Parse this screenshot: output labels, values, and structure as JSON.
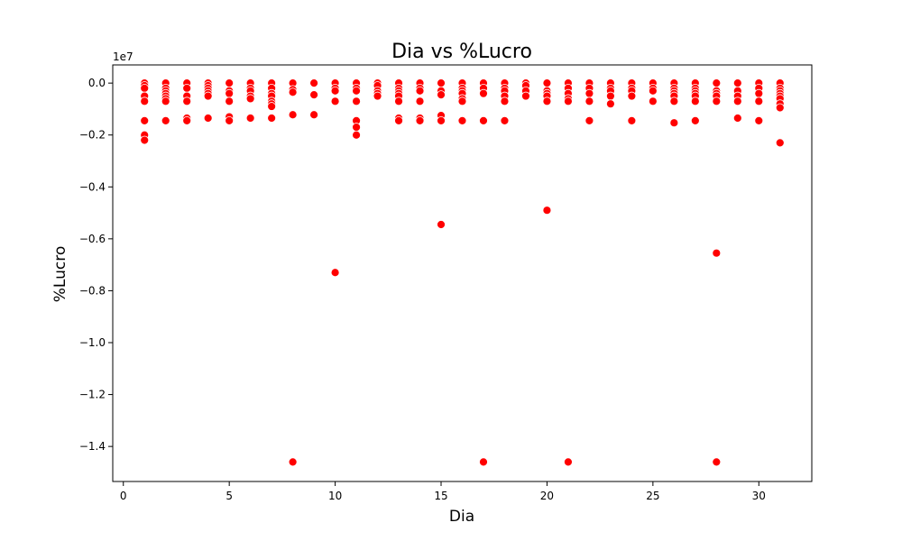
{
  "chart_data": {
    "type": "scatter",
    "title": "Dia vs %Lucro",
    "xlabel": "Dia",
    "ylabel": "%Lucro",
    "y_offset_label": "1e7",
    "xlim": [
      -0.5,
      32.5
    ],
    "ylim": [
      -1.535,
      0.07
    ],
    "x_ticks": [
      0,
      5,
      10,
      15,
      20,
      25,
      30
    ],
    "x_tick_labels": [
      "0",
      "5",
      "10",
      "15",
      "20",
      "25",
      "30"
    ],
    "y_ticks": [
      0.0,
      -0.2,
      -0.4,
      -0.6,
      -0.8,
      -1.0,
      -1.2,
      -1.4
    ],
    "y_tick_labels": [
      "0.0",
      "−0.2",
      "−0.4",
      "−0.6",
      "−0.8",
      "−1.0",
      "−1.2",
      "−1.4"
    ],
    "grid": false,
    "marker_color": "#ff0000",
    "series": [
      {
        "points": [
          [
            1,
            0.0
          ],
          [
            1,
            -0.01
          ],
          [
            1,
            -0.02
          ],
          [
            1,
            -0.05
          ],
          [
            1,
            -0.07
          ],
          [
            1,
            -0.2
          ],
          [
            1,
            -0.22
          ],
          [
            1,
            -0.145
          ],
          [
            2,
            0.0
          ],
          [
            2,
            -0.02
          ],
          [
            2,
            -0.03
          ],
          [
            2,
            -0.04
          ],
          [
            2,
            -0.05
          ],
          [
            2,
            -0.06
          ],
          [
            2,
            -0.07
          ],
          [
            2,
            -0.145
          ],
          [
            3,
            0.0
          ],
          [
            3,
            -0.02
          ],
          [
            3,
            -0.05
          ],
          [
            3,
            -0.07
          ],
          [
            3,
            -0.135
          ],
          [
            3,
            -0.145
          ],
          [
            4,
            0.0
          ],
          [
            4,
            -0.01
          ],
          [
            4,
            -0.02
          ],
          [
            4,
            -0.03
          ],
          [
            4,
            -0.04
          ],
          [
            4,
            -0.05
          ],
          [
            4,
            -0.135
          ],
          [
            5,
            0.0
          ],
          [
            5,
            -0.03
          ],
          [
            5,
            -0.04
          ],
          [
            5,
            -0.07
          ],
          [
            5,
            -0.13
          ],
          [
            5,
            -0.145
          ],
          [
            6,
            0.0
          ],
          [
            6,
            -0.02
          ],
          [
            6,
            -0.03
          ],
          [
            6,
            -0.05
          ],
          [
            6,
            -0.06
          ],
          [
            6,
            -0.135
          ],
          [
            7,
            0.0
          ],
          [
            7,
            -0.02
          ],
          [
            7,
            -0.04
          ],
          [
            7,
            -0.05
          ],
          [
            7,
            -0.07
          ],
          [
            7,
            -0.08
          ],
          [
            7,
            -0.09
          ],
          [
            7,
            -0.135
          ],
          [
            8,
            0.0
          ],
          [
            8,
            -0.025
          ],
          [
            8,
            -0.035
          ],
          [
            8,
            -0.122
          ],
          [
            8,
            -1.46
          ],
          [
            9,
            0.0
          ],
          [
            9,
            -0.045
          ],
          [
            9,
            -0.122
          ],
          [
            10,
            0.0
          ],
          [
            10,
            -0.02
          ],
          [
            10,
            -0.03
          ],
          [
            10,
            -0.07
          ],
          [
            10,
            -0.73
          ],
          [
            11,
            0.0
          ],
          [
            11,
            -0.02
          ],
          [
            11,
            -0.03
          ],
          [
            11,
            -0.07
          ],
          [
            11,
            -0.145
          ],
          [
            11,
            -0.17
          ],
          [
            11,
            -0.2
          ],
          [
            12,
            0.0
          ],
          [
            12,
            -0.01
          ],
          [
            12,
            -0.03
          ],
          [
            12,
            -0.04
          ],
          [
            12,
            -0.05
          ],
          [
            13,
            0.0
          ],
          [
            13,
            -0.02
          ],
          [
            13,
            -0.03
          ],
          [
            13,
            -0.04
          ],
          [
            13,
            -0.05
          ],
          [
            13,
            -0.07
          ],
          [
            13,
            -0.135
          ],
          [
            13,
            -0.145
          ],
          [
            14,
            0.0
          ],
          [
            14,
            -0.02
          ],
          [
            14,
            -0.03
          ],
          [
            14,
            -0.07
          ],
          [
            14,
            -0.135
          ],
          [
            14,
            -0.145
          ],
          [
            15,
            0.0
          ],
          [
            15,
            -0.03
          ],
          [
            15,
            -0.045
          ],
          [
            15,
            -0.125
          ],
          [
            15,
            -0.145
          ],
          [
            15,
            -0.545
          ],
          [
            16,
            0.0
          ],
          [
            16,
            -0.02
          ],
          [
            16,
            -0.03
          ],
          [
            16,
            -0.04
          ],
          [
            16,
            -0.06
          ],
          [
            16,
            -0.07
          ],
          [
            16,
            -0.145
          ],
          [
            17,
            0.0
          ],
          [
            17,
            -0.02
          ],
          [
            17,
            -0.04
          ],
          [
            17,
            -0.145
          ],
          [
            17,
            -1.46
          ],
          [
            18,
            0.0
          ],
          [
            18,
            -0.02
          ],
          [
            18,
            -0.03
          ],
          [
            18,
            -0.05
          ],
          [
            18,
            -0.07
          ],
          [
            18,
            -0.145
          ],
          [
            19,
            0.0
          ],
          [
            19,
            -0.01
          ],
          [
            19,
            -0.03
          ],
          [
            19,
            -0.05
          ],
          [
            20,
            0.0
          ],
          [
            20,
            -0.03
          ],
          [
            20,
            -0.04
          ],
          [
            20,
            -0.05
          ],
          [
            20,
            -0.07
          ],
          [
            20,
            -0.49
          ],
          [
            21,
            0.0
          ],
          [
            21,
            -0.02
          ],
          [
            21,
            -0.04
          ],
          [
            21,
            -0.06
          ],
          [
            21,
            -0.07
          ],
          [
            21,
            -1.46
          ],
          [
            22,
            0.0
          ],
          [
            22,
            -0.02
          ],
          [
            22,
            -0.04
          ],
          [
            22,
            -0.07
          ],
          [
            22,
            -0.145
          ],
          [
            23,
            0.0
          ],
          [
            23,
            -0.02
          ],
          [
            23,
            -0.03
          ],
          [
            23,
            -0.05
          ],
          [
            23,
            -0.08
          ],
          [
            24,
            0.0
          ],
          [
            24,
            -0.02
          ],
          [
            24,
            -0.03
          ],
          [
            24,
            -0.05
          ],
          [
            24,
            -0.145
          ],
          [
            25,
            0.0
          ],
          [
            25,
            -0.02
          ],
          [
            25,
            -0.03
          ],
          [
            25,
            -0.07
          ],
          [
            26,
            0.0
          ],
          [
            26,
            -0.02
          ],
          [
            26,
            -0.03
          ],
          [
            26,
            -0.04
          ],
          [
            26,
            -0.05
          ],
          [
            26,
            -0.07
          ],
          [
            26,
            -0.153
          ],
          [
            27,
            0.0
          ],
          [
            27,
            -0.02
          ],
          [
            27,
            -0.03
          ],
          [
            27,
            -0.04
          ],
          [
            27,
            -0.05
          ],
          [
            27,
            -0.07
          ],
          [
            27,
            -0.145
          ],
          [
            28,
            0.0
          ],
          [
            28,
            -0.03
          ],
          [
            28,
            -0.04
          ],
          [
            28,
            -0.05
          ],
          [
            28,
            -0.07
          ],
          [
            28,
            -0.655
          ],
          [
            28,
            -1.46
          ],
          [
            29,
            0.0
          ],
          [
            29,
            -0.03
          ],
          [
            29,
            -0.05
          ],
          [
            29,
            -0.07
          ],
          [
            29,
            -0.135
          ],
          [
            30,
            0.0
          ],
          [
            30,
            -0.02
          ],
          [
            30,
            -0.04
          ],
          [
            30,
            -0.07
          ],
          [
            30,
            -0.145
          ],
          [
            31,
            0.0
          ],
          [
            31,
            -0.02
          ],
          [
            31,
            -0.03
          ],
          [
            31,
            -0.04
          ],
          [
            31,
            -0.05
          ],
          [
            31,
            -0.06
          ],
          [
            31,
            -0.08
          ],
          [
            31,
            -0.095
          ],
          [
            31,
            -0.23
          ]
        ]
      }
    ]
  }
}
